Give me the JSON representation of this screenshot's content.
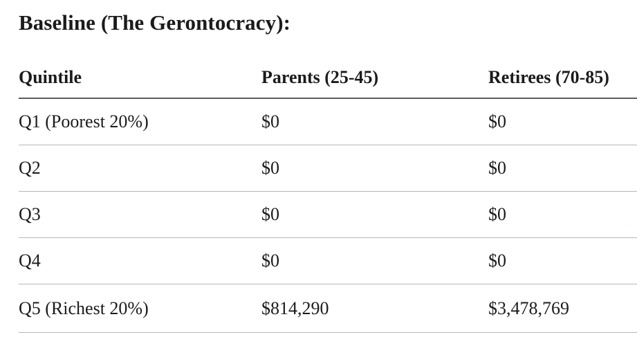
{
  "page": {
    "title": "Baseline (The Gerontocracy):"
  },
  "table": {
    "columns": [
      "Quintile",
      "Parents (25-45)",
      "Retirees (70-85)"
    ],
    "rows": [
      {
        "quintile": "Q1 (Poorest 20%)",
        "parents": "$0",
        "retirees": "$0"
      },
      {
        "quintile": "Q2",
        "parents": "$0",
        "retirees": "$0"
      },
      {
        "quintile": "Q3",
        "parents": "$0",
        "retirees": "$0"
      },
      {
        "quintile": "Q4",
        "parents": "$0",
        "retirees": "$0"
      },
      {
        "quintile": "Q5 (Richest 20%)",
        "parents": "$814,290",
        "retirees": "$3,478,769"
      }
    ]
  },
  "colors": {
    "text": "#1b1b1b",
    "header_rule": "#5a5d61",
    "row_rule": "#b4b6b8",
    "background": "#ffffff"
  }
}
